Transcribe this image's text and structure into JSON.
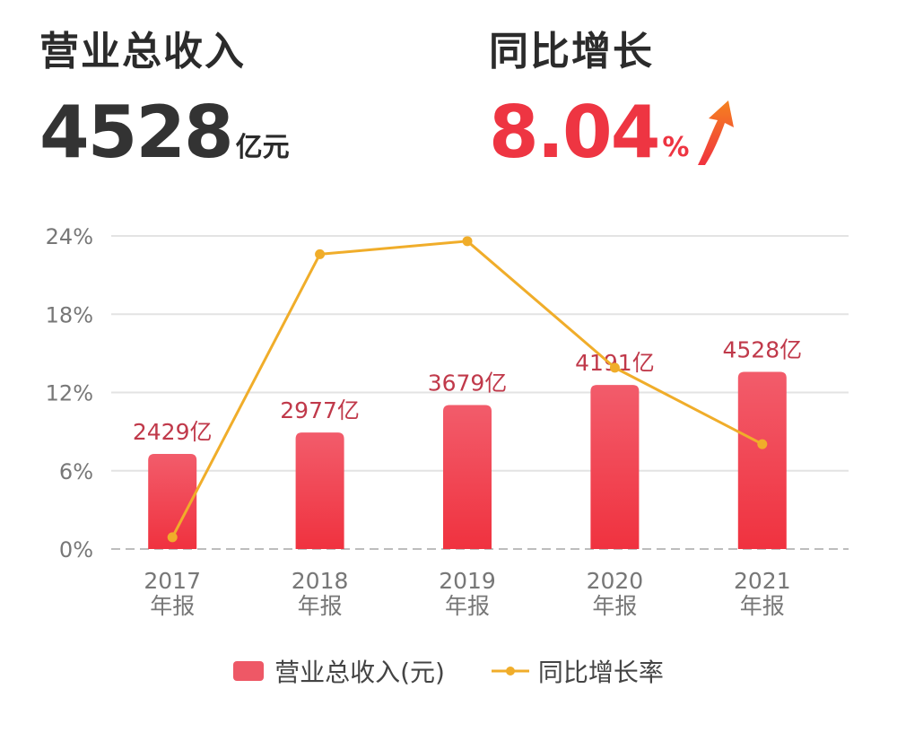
{
  "kpi": {
    "revenue_label": "营业总收入",
    "revenue_value": "4528",
    "revenue_unit": "亿元",
    "growth_label": "同比增长",
    "growth_value": "8.04",
    "growth_unit": "%"
  },
  "colors": {
    "bar_top": "#f25c6b",
    "bar_bottom": "#f0323f",
    "line": "#f0ad2a",
    "bar_label": "#c0394a",
    "axis_text": "#777777",
    "grid": "#e3e3e3",
    "accent_red": "#ee3542",
    "arrow_orange": "#f5821f"
  },
  "chart_data": {
    "type": "bar",
    "categories": [
      "2017\n年报",
      "2018\n年报",
      "2019\n年报",
      "2020\n年报",
      "2021\n年报"
    ],
    "series": [
      {
        "name": "营业总收入(元)",
        "kind": "bar",
        "values": [
          2429,
          2977,
          3679,
          4191,
          4528
        ],
        "labels": [
          "2429亿",
          "2977亿",
          "3679亿",
          "4191亿",
          "4528亿"
        ]
      },
      {
        "name": "同比增长率",
        "kind": "line",
        "axis": "left",
        "values": [
          0.9,
          22.6,
          23.6,
          13.9,
          8.04
        ]
      }
    ],
    "yaxis": {
      "ticks": [
        "0%",
        "6%",
        "12%",
        "18%",
        "24%"
      ],
      "range": [
        0,
        24
      ]
    },
    "bar_scale_max": 8000,
    "grid": true,
    "legend_position": "bottom"
  }
}
